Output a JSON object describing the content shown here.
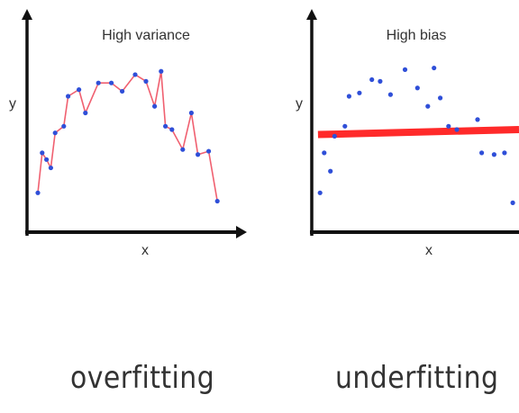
{
  "chart_data": [
    {
      "type": "line",
      "title": "High variance",
      "xlabel": "x",
      "ylabel": "y",
      "caption": "overfitting",
      "colors": {
        "points": "#2f4fd8",
        "fit_line": "#f06070",
        "axis": "#111111"
      },
      "series": [
        {
          "points": [
            [
              0.05,
              0.22
            ],
            [
              0.07,
              0.46
            ],
            [
              0.09,
              0.42
            ],
            [
              0.11,
              0.37
            ],
            [
              0.13,
              0.58
            ],
            [
              0.17,
              0.62
            ],
            [
              0.19,
              0.8
            ],
            [
              0.24,
              0.84
            ],
            [
              0.27,
              0.7
            ],
            [
              0.33,
              0.88
            ],
            [
              0.39,
              0.88
            ],
            [
              0.44,
              0.83
            ],
            [
              0.5,
              0.93
            ],
            [
              0.55,
              0.89
            ],
            [
              0.59,
              0.74
            ],
            [
              0.62,
              0.95
            ],
            [
              0.64,
              0.62
            ],
            [
              0.67,
              0.6
            ],
            [
              0.72,
              0.48
            ],
            [
              0.76,
              0.7
            ],
            [
              0.79,
              0.45
            ],
            [
              0.84,
              0.47
            ],
            [
              0.88,
              0.17
            ]
          ]
        }
      ]
    },
    {
      "type": "scatter",
      "title": "High bias",
      "xlabel": "x",
      "ylabel": "y",
      "caption": "underfitting",
      "colors": {
        "points": "#2f4fd8",
        "fit_line": "#ff2a2a",
        "axis": "#111111"
      },
      "fit_line": {
        "x": [
          0.03,
          1.0
        ],
        "y": [
          0.57,
          0.6
        ]
      },
      "series": [
        {
          "points": [
            [
              0.04,
              0.22
            ],
            [
              0.06,
              0.46
            ],
            [
              0.09,
              0.35
            ],
            [
              0.11,
              0.56
            ],
            [
              0.16,
              0.62
            ],
            [
              0.18,
              0.8
            ],
            [
              0.23,
              0.82
            ],
            [
              0.29,
              0.9
            ],
            [
              0.33,
              0.89
            ],
            [
              0.38,
              0.81
            ],
            [
              0.45,
              0.96
            ],
            [
              0.51,
              0.85
            ],
            [
              0.56,
              0.74
            ],
            [
              0.59,
              0.97
            ],
            [
              0.62,
              0.79
            ],
            [
              0.66,
              0.62
            ],
            [
              0.7,
              0.6
            ],
            [
              0.8,
              0.66
            ],
            [
              0.82,
              0.46
            ],
            [
              0.88,
              0.45
            ],
            [
              0.93,
              0.46
            ],
            [
              0.97,
              0.16
            ]
          ]
        }
      ]
    }
  ]
}
